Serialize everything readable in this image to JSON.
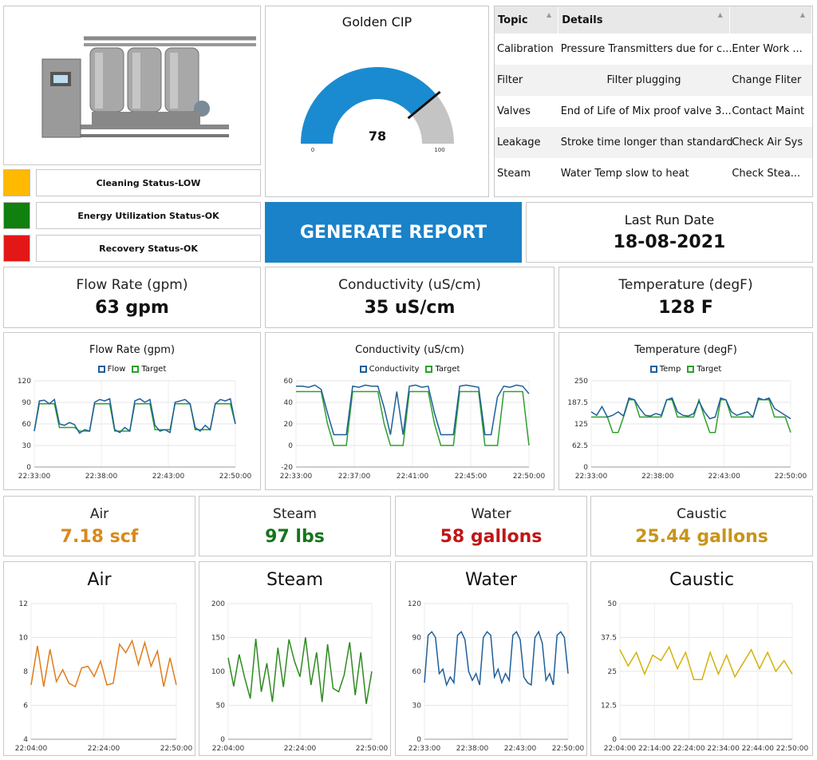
{
  "gauge": {
    "title": "Golden CIP",
    "value": 78,
    "min": "0",
    "max": "100",
    "fraction": 0.78,
    "color": "#1a8bd0"
  },
  "status": [
    {
      "label": "Cleaning Status-LOW",
      "color": "#ffb900"
    },
    {
      "label": "Energy Utilization Status-OK",
      "color": "#10800e"
    },
    {
      "label": "Recovery Status-OK",
      "color": "#e31717"
    }
  ],
  "topics": {
    "headers": [
      "Topic",
      "Details",
      ""
    ],
    "rows": [
      [
        "Calibration",
        "Pressure Transmitters due for c...",
        "Enter Work ..."
      ],
      [
        "Filter",
        "Filter plugging",
        "Change Fliter"
      ],
      [
        "Valves",
        "End of Life of Mix proof valve 3...",
        "Contact Maint"
      ],
      [
        "Leakage",
        "Stroke time longer than standard",
        "Check Air Sys"
      ],
      [
        "Steam",
        "Water Temp slow to heat",
        "Check Stea..."
      ]
    ]
  },
  "report_button": "GENERATE REPORT",
  "last_run": {
    "label": "Last Run Date",
    "value": "18-08-2021"
  },
  "kpis": [
    {
      "label": "Flow Rate (gpm)",
      "value": "63 gpm"
    },
    {
      "label": "Conductivity (uS/cm)",
      "value": "35 uS/cm"
    },
    {
      "label": "Temperature (degF)",
      "value": "128 F"
    }
  ],
  "utilities": [
    {
      "label": "Air",
      "value": "7.18 scf",
      "color": "#d98a1b"
    },
    {
      "label": "Steam",
      "value": "97 lbs",
      "color": "#15761a"
    },
    {
      "label": "Water",
      "value": "58 gallons",
      "color": "#c01616"
    },
    {
      "label": "Caustic",
      "value": "25.44 gallons",
      "color": "#c8951a"
    }
  ],
  "chart_data": [
    {
      "type": "line",
      "title": "Flow Rate (gpm)",
      "yticks": [
        "120",
        "90",
        "60",
        "30",
        "0"
      ],
      "ylim": [
        0,
        120
      ],
      "xticks": [
        "22:33:00",
        "22:38:00",
        "22:43:00",
        "22:50:00"
      ],
      "series": [
        {
          "name": "Flow",
          "color": "#1f5f9a",
          "values": [
            50,
            92,
            93,
            88,
            94,
            60,
            58,
            62,
            59,
            47,
            52,
            50,
            90,
            94,
            92,
            95,
            52,
            48,
            55,
            50,
            92,
            95,
            90,
            94,
            58,
            50,
            52,
            48,
            90,
            92,
            94,
            88,
            55,
            50,
            58,
            52,
            88,
            94,
            92,
            95,
            60
          ]
        },
        {
          "name": "Target",
          "color": "#2ea02e",
          "values": [
            50,
            88,
            88,
            88,
            88,
            55,
            55,
            55,
            55,
            50,
            50,
            50,
            88,
            88,
            88,
            88,
            50,
            50,
            50,
            50,
            88,
            88,
            88,
            88,
            52,
            52,
            52,
            52,
            88,
            88,
            88,
            88,
            52,
            52,
            52,
            52,
            88,
            88,
            88,
            88,
            60
          ]
        }
      ]
    },
    {
      "type": "line",
      "title": "Conductivity (uS/cm)",
      "yticks": [
        "60",
        "40",
        "20",
        "0",
        "-20"
      ],
      "ylim": [
        -20,
        60
      ],
      "xticks": [
        "22:33:00",
        "22:37:00",
        "22:41:00",
        "22:45:00",
        "22:50:00"
      ],
      "series": [
        {
          "name": "Conductivity",
          "color": "#1f5f9a",
          "values": [
            55,
            55,
            54,
            56,
            52,
            30,
            10,
            10,
            10,
            55,
            54,
            56,
            55,
            55,
            35,
            10,
            50,
            10,
            55,
            56,
            54,
            55,
            30,
            10,
            10,
            10,
            55,
            56,
            55,
            54,
            10,
            10,
            45,
            55,
            54,
            56,
            55,
            48
          ]
        },
        {
          "name": "Target",
          "color": "#2ea02e",
          "values": [
            50,
            50,
            50,
            50,
            50,
            20,
            0,
            0,
            0,
            50,
            50,
            50,
            50,
            50,
            20,
            0,
            0,
            0,
            50,
            50,
            50,
            50,
            20,
            0,
            0,
            0,
            50,
            50,
            50,
            50,
            0,
            0,
            0,
            50,
            50,
            50,
            50,
            0
          ]
        }
      ]
    },
    {
      "type": "line",
      "title": "Temperature (degF)",
      "yticks": [
        "250",
        "187.5",
        "125",
        "62.5",
        "0"
      ],
      "ylim": [
        0,
        250
      ],
      "xticks": [
        "22:33:00",
        "22:38:00",
        "22:43:00",
        "22:50:00"
      ],
      "series": [
        {
          "name": "Temp",
          "color": "#1f5f9a",
          "values": [
            160,
            150,
            175,
            145,
            150,
            160,
            148,
            200,
            195,
            170,
            150,
            148,
            155,
            150,
            195,
            200,
            160,
            150,
            148,
            155,
            190,
            160,
            140,
            145,
            200,
            195,
            160,
            150,
            155,
            160,
            145,
            200,
            195,
            200,
            170,
            160,
            150,
            140
          ]
        },
        {
          "name": "Target",
          "color": "#2ea02e",
          "values": [
            145,
            145,
            145,
            145,
            100,
            100,
            145,
            195,
            195,
            145,
            145,
            145,
            145,
            145,
            195,
            195,
            145,
            145,
            145,
            145,
            195,
            145,
            100,
            100,
            195,
            195,
            145,
            145,
            145,
            145,
            145,
            195,
            195,
            195,
            145,
            145,
            145,
            100
          ]
        }
      ]
    },
    {
      "type": "line",
      "title": "Air",
      "yticks": [
        "12",
        "10",
        "8",
        "6",
        "4"
      ],
      "ylim": [
        4,
        12
      ],
      "xticks": [
        "22:04:00",
        "22:24:00",
        "22:50:00"
      ],
      "color": "#e07b1a",
      "values": [
        7.2,
        9.5,
        7.1,
        9.3,
        7.4,
        8.1,
        7.3,
        7.1,
        8.2,
        8.3,
        7.7,
        8.6,
        7.2,
        7.3,
        9.6,
        9.1,
        9.8,
        8.4,
        9.7,
        8.3,
        9.2,
        7.1,
        8.8,
        7.2
      ]
    },
    {
      "type": "line",
      "title": "Steam",
      "yticks": [
        "200",
        "150",
        "100",
        "50",
        "0"
      ],
      "ylim": [
        0,
        200
      ],
      "xticks": [
        "22:04:00",
        "22:24:00",
        "22:50:00"
      ],
      "color": "#2e8b1f",
      "values": [
        120,
        78,
        125,
        90,
        60,
        148,
        70,
        112,
        55,
        135,
        77,
        147,
        115,
        92,
        150,
        80,
        128,
        55,
        140,
        75,
        70,
        95,
        143,
        65,
        128,
        52,
        100
      ]
    },
    {
      "type": "line",
      "title": "Water",
      "yticks": [
        "120",
        "90",
        "60",
        "30",
        "0"
      ],
      "ylim": [
        0,
        120
      ],
      "xticks": [
        "22:33:00",
        "22:38:00",
        "22:43:00",
        "22:50:00"
      ],
      "color": "#1f5f9a",
      "values": [
        50,
        92,
        95,
        90,
        58,
        62,
        48,
        55,
        50,
        92,
        95,
        88,
        60,
        52,
        58,
        48,
        90,
        95,
        92,
        55,
        62,
        50,
        58,
        52,
        92,
        95,
        88,
        55,
        50,
        48,
        90,
        95,
        85,
        52,
        58,
        48,
        92,
        95,
        90,
        58
      ]
    },
    {
      "type": "line",
      "title": "Caustic",
      "yticks": [
        "50",
        "37.5",
        "25",
        "12.5",
        "0"
      ],
      "ylim": [
        0,
        50
      ],
      "xticks": [
        "22:04:00",
        "22:14:00",
        "22:24:00",
        "22:34:00",
        "22:44:00",
        "22:50:00"
      ],
      "color": "#d4b20c",
      "values": [
        33,
        27,
        32,
        24,
        31,
        29,
        34,
        26,
        32,
        22,
        22,
        32,
        24,
        31,
        23,
        28,
        33,
        26,
        32,
        25,
        29,
        24
      ]
    }
  ]
}
